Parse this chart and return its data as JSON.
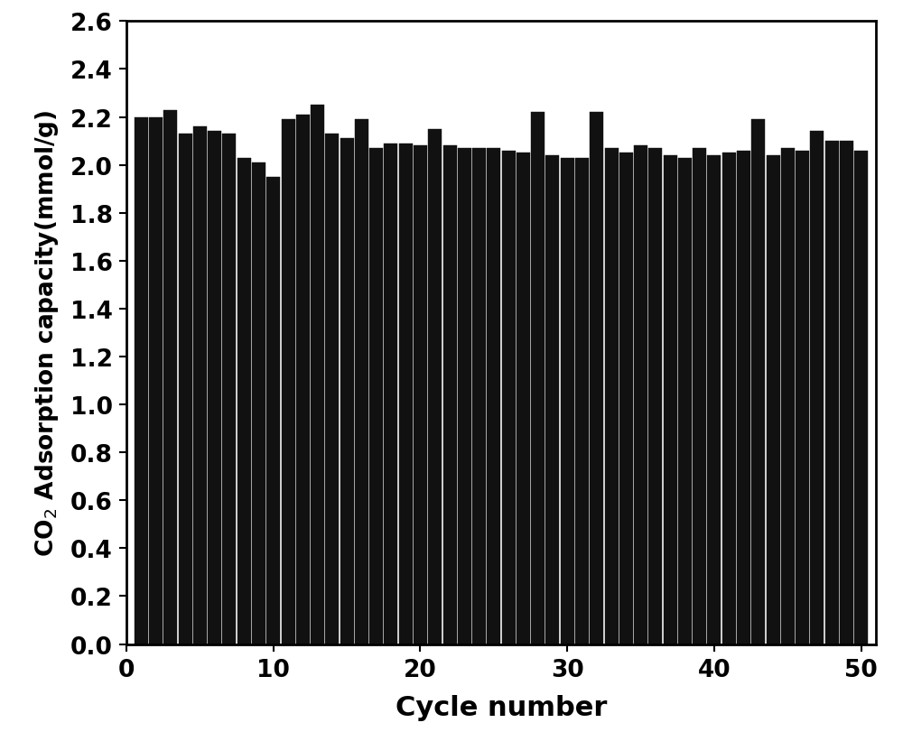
{
  "values": [
    2.2,
    2.2,
    2.23,
    2.13,
    2.16,
    2.14,
    2.13,
    2.03,
    2.01,
    1.95,
    2.19,
    2.21,
    2.25,
    2.13,
    2.11,
    2.19,
    2.07,
    2.09,
    2.09,
    2.08,
    2.15,
    2.08,
    2.07,
    2.07,
    2.07,
    2.06,
    2.05,
    2.22,
    2.04,
    2.03,
    2.03,
    2.22,
    2.07,
    2.05,
    2.08,
    2.07,
    2.04,
    2.03,
    2.07,
    2.04,
    2.05,
    2.06,
    2.19,
    2.04,
    2.07,
    2.06,
    2.14,
    2.1,
    2.1,
    2.06
  ],
  "bar_color": "#111111",
  "bar_edge_color": "#111111",
  "xlabel": "Cycle number",
  "ylabel": "CO$_2$ Adsorption capacity(mmol/g)",
  "ylim": [
    0.0,
    2.6
  ],
  "yticks": [
    0.0,
    0.2,
    0.4,
    0.6,
    0.8,
    1.0,
    1.2,
    1.4,
    1.6,
    1.8,
    2.0,
    2.2,
    2.4,
    2.6
  ],
  "xticks": [
    0,
    10,
    20,
    30,
    40,
    50
  ],
  "xlabel_fontsize": 22,
  "ylabel_fontsize": 19,
  "tick_fontsize": 19,
  "background_color": "#ffffff",
  "bar_width": 0.92
}
